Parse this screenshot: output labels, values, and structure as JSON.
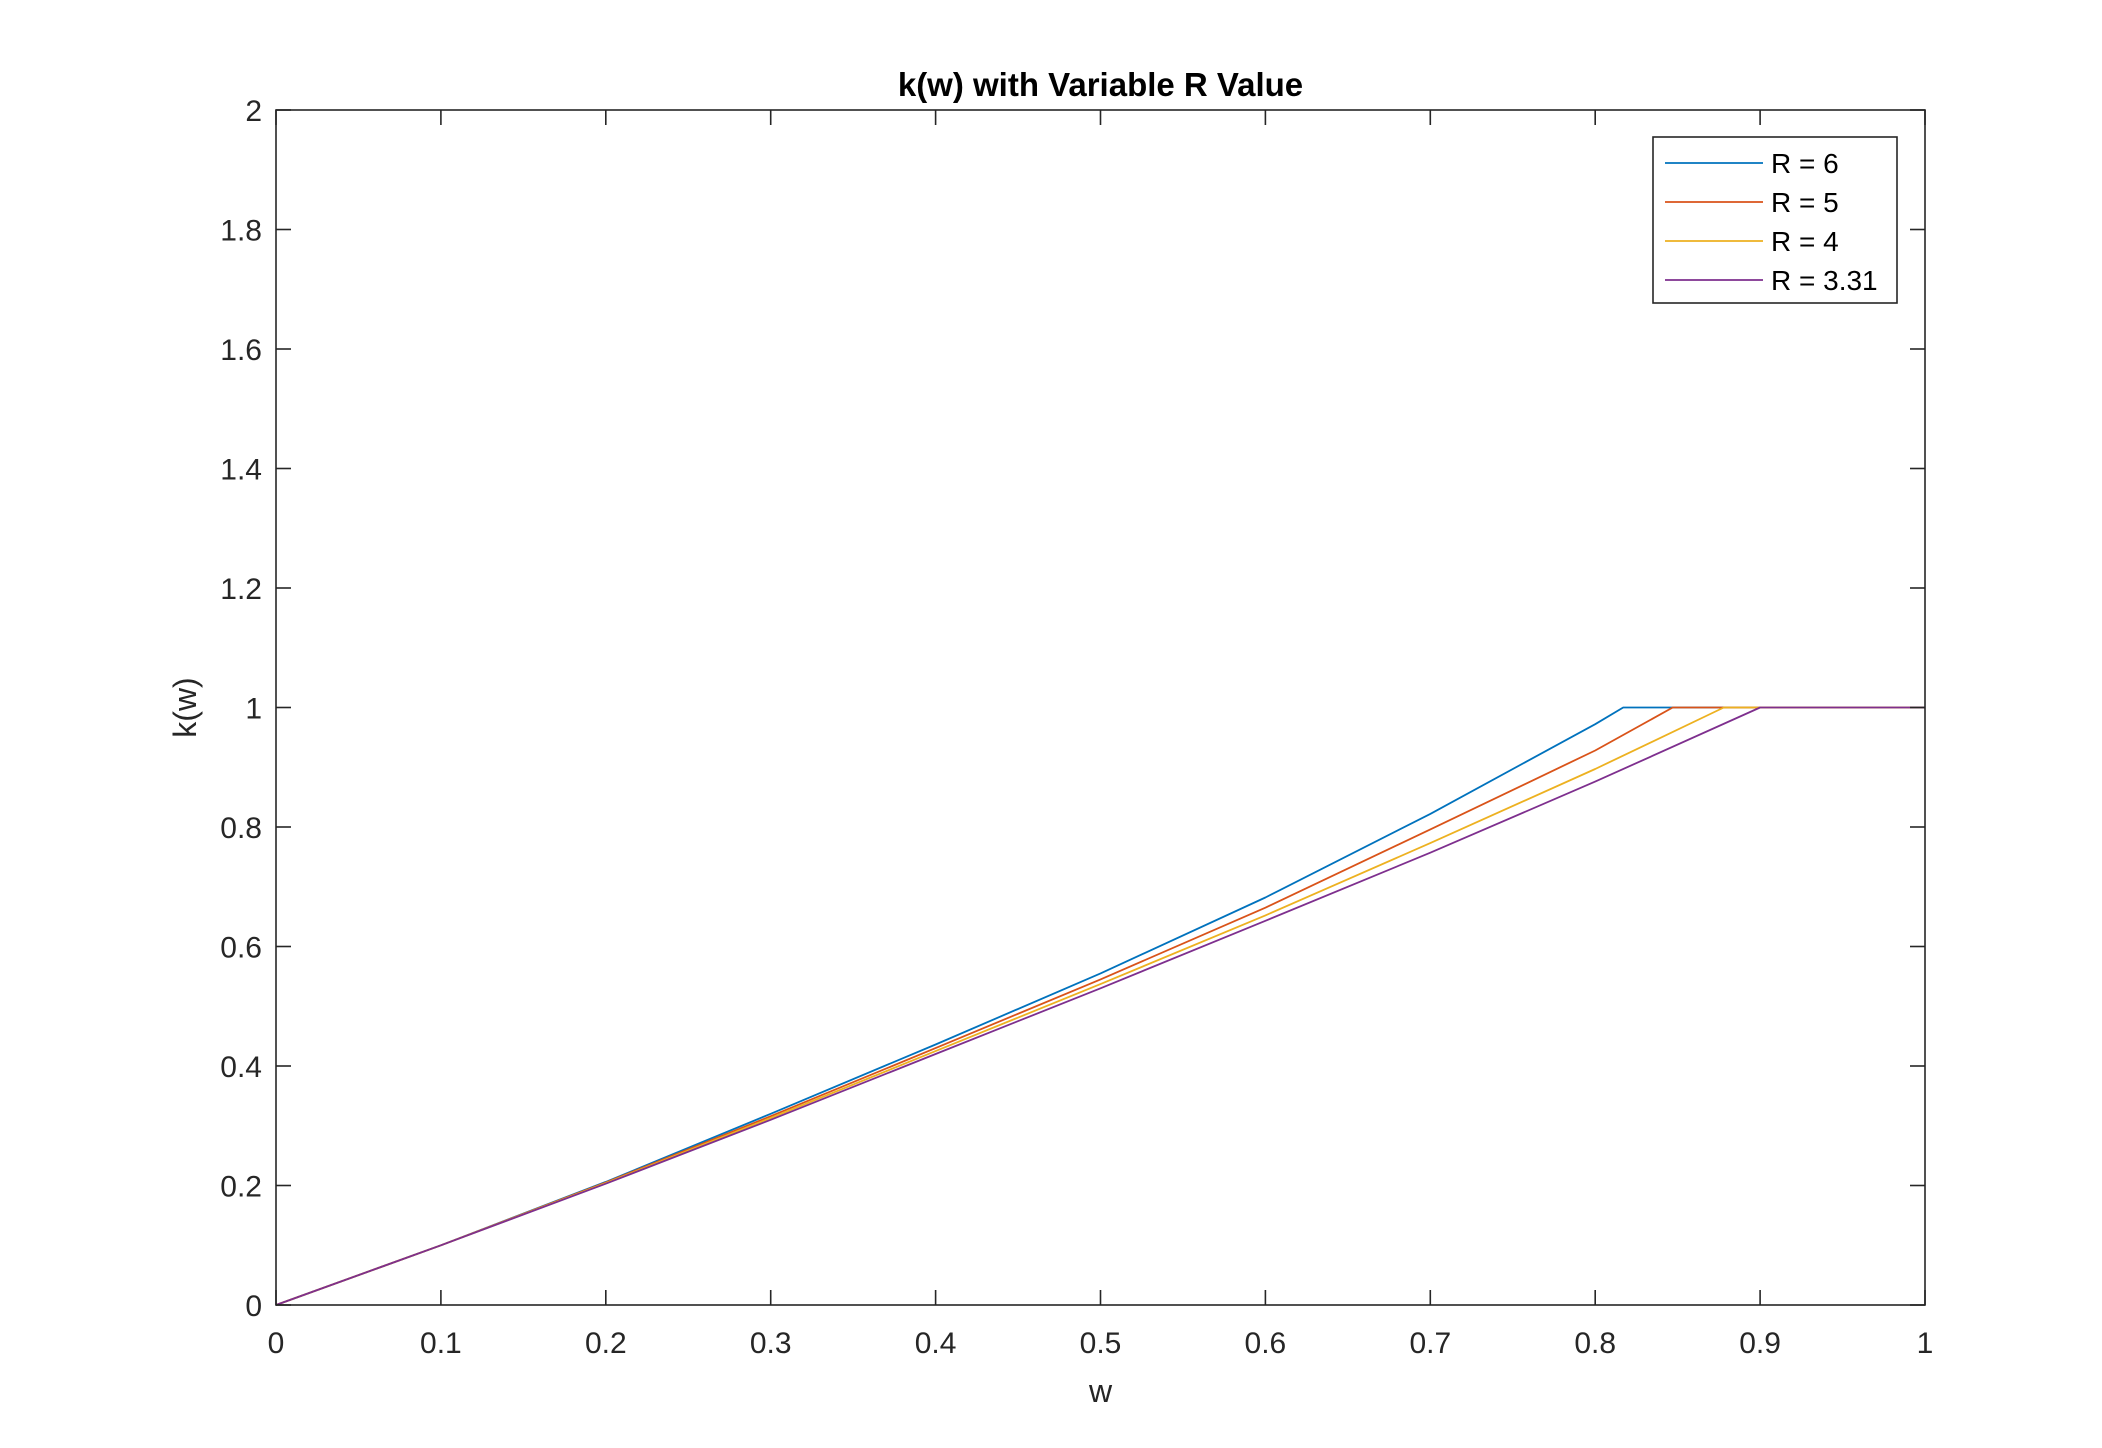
{
  "chart_data": {
    "type": "line",
    "title": "k(w) with Variable R Value",
    "xlabel": "w",
    "ylabel": "k(w)",
    "xlim": [
      0,
      1
    ],
    "ylim": [
      0,
      2
    ],
    "xticks": [
      0,
      0.1,
      0.2,
      0.3,
      0.4,
      0.5,
      0.6,
      0.7,
      0.8,
      0.9,
      1
    ],
    "xtick_labels": [
      "0",
      "0.1",
      "0.2",
      "0.3",
      "0.4",
      "0.5",
      "0.6",
      "0.7",
      "0.8",
      "0.9",
      "1"
    ],
    "yticks": [
      0,
      0.2,
      0.4,
      0.6,
      0.8,
      1,
      1.2,
      1.4,
      1.6,
      1.8,
      2
    ],
    "ytick_labels": [
      "0",
      "0.2",
      "0.4",
      "0.6",
      "0.8",
      "1",
      "1.2",
      "1.4",
      "1.6",
      "1.8",
      "2"
    ],
    "grid": false,
    "legend_position": "top-right",
    "series": [
      {
        "name": "R = 6",
        "color": "#0072BD",
        "x": [
          0,
          0.1,
          0.2,
          0.3,
          0.4,
          0.5,
          0.6,
          0.7,
          0.8,
          0.817,
          0.85,
          0.9,
          0.95,
          1
        ],
        "y": [
          0,
          0.1,
          0.206,
          0.32,
          0.436,
          0.555,
          0.682,
          0.822,
          0.972,
          1,
          1,
          1,
          1,
          1
        ]
      },
      {
        "name": "R = 5",
        "color": "#D95319",
        "x": [
          0,
          0.1,
          0.2,
          0.3,
          0.4,
          0.5,
          0.6,
          0.7,
          0.8,
          0.847,
          0.9,
          0.95,
          1
        ],
        "y": [
          0,
          0.1,
          0.205,
          0.316,
          0.43,
          0.545,
          0.665,
          0.796,
          0.928,
          1,
          1,
          1,
          1
        ]
      },
      {
        "name": "R = 4",
        "color": "#EDB120",
        "x": [
          0,
          0.1,
          0.2,
          0.3,
          0.4,
          0.5,
          0.6,
          0.7,
          0.8,
          0.878,
          0.9,
          0.95,
          1
        ],
        "y": [
          0,
          0.1,
          0.204,
          0.313,
          0.425,
          0.537,
          0.652,
          0.773,
          0.897,
          1,
          1,
          1,
          1
        ]
      },
      {
        "name": "R = 3.31",
        "color": "#7E2F8E",
        "x": [
          0,
          0.1,
          0.2,
          0.3,
          0.4,
          0.5,
          0.6,
          0.7,
          0.8,
          0.9,
          0.95,
          1
        ],
        "y": [
          0,
          0.1,
          0.203,
          0.31,
          0.42,
          0.53,
          0.643,
          0.757,
          0.876,
          1,
          1,
          1
        ]
      }
    ]
  }
}
